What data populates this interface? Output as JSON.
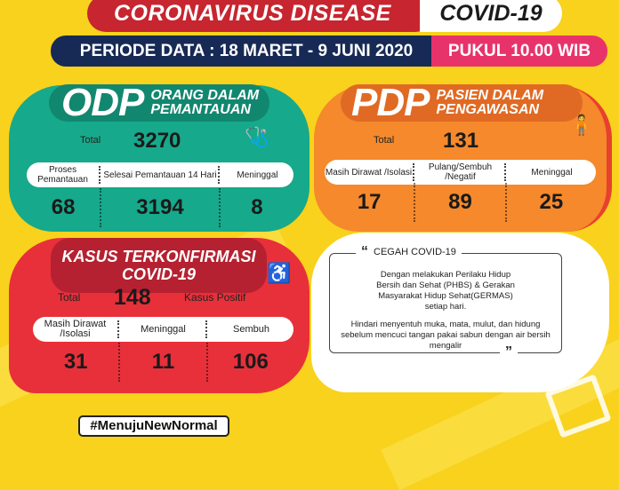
{
  "header": {
    "title": "CORONAVIRUS DISEASE",
    "title_badge": "COVID-19",
    "periode": "PERIODE DATA : 18 MARET - 9 JUNI 2020",
    "time": "PUKUL 10.00 WIB"
  },
  "odp": {
    "abbr": "ODP",
    "name_line1": "ORANG DALAM",
    "name_line2": "PEMANTAUAN",
    "total_label": "Total",
    "total": "3270",
    "columns": [
      {
        "label": "Proses Pemantauan",
        "value": "68"
      },
      {
        "label": "Selesai Pemantauan 14 Hari",
        "value": "3194"
      },
      {
        "label": "Meninggal",
        "value": "8"
      }
    ],
    "color": "#17a98b"
  },
  "pdp": {
    "abbr": "PDP",
    "name_line1": "PASIEN DALAM",
    "name_line2": "PENGAWASAN",
    "total_label": "Total",
    "total": "131",
    "columns": [
      {
        "label": "Masih Dirawat /Isolasi",
        "value": "17"
      },
      {
        "label": "Pulang/Sembuh /Negatif",
        "value": "89"
      },
      {
        "label": "Meninggal",
        "value": "25"
      }
    ],
    "color": "#f5892b"
  },
  "confirmed": {
    "title_line1": "KASUS TERKONFIRMASI",
    "title_line2": "COVID-19",
    "total_label": "Total",
    "total": "148",
    "total_suffix": "Kasus Positif",
    "columns": [
      {
        "label": "Masih Dirawat /Isolasi",
        "value": "31"
      },
      {
        "label": "Meninggal",
        "value": "11"
      },
      {
        "label": "Sembuh",
        "value": "106"
      }
    ],
    "color": "#e8303a"
  },
  "prevention": {
    "title": "CEGAH COVID-19",
    "open_quote": "“",
    "close_quote": "”",
    "paragraph1": "Dengan melakukan Perilaku Hidup Bersih dan Sehat (PHBS) & Gerakan Masyarakat Hidup Sehat(GERMAS) setiap hari.",
    "paragraph2": "Hindari menyentuh muka, mata, mulut, dan hidung sebelum mencuci tangan pakai sabun dengan air bersih mengalir"
  },
  "hashtag": "#MenujuNewNormal"
}
